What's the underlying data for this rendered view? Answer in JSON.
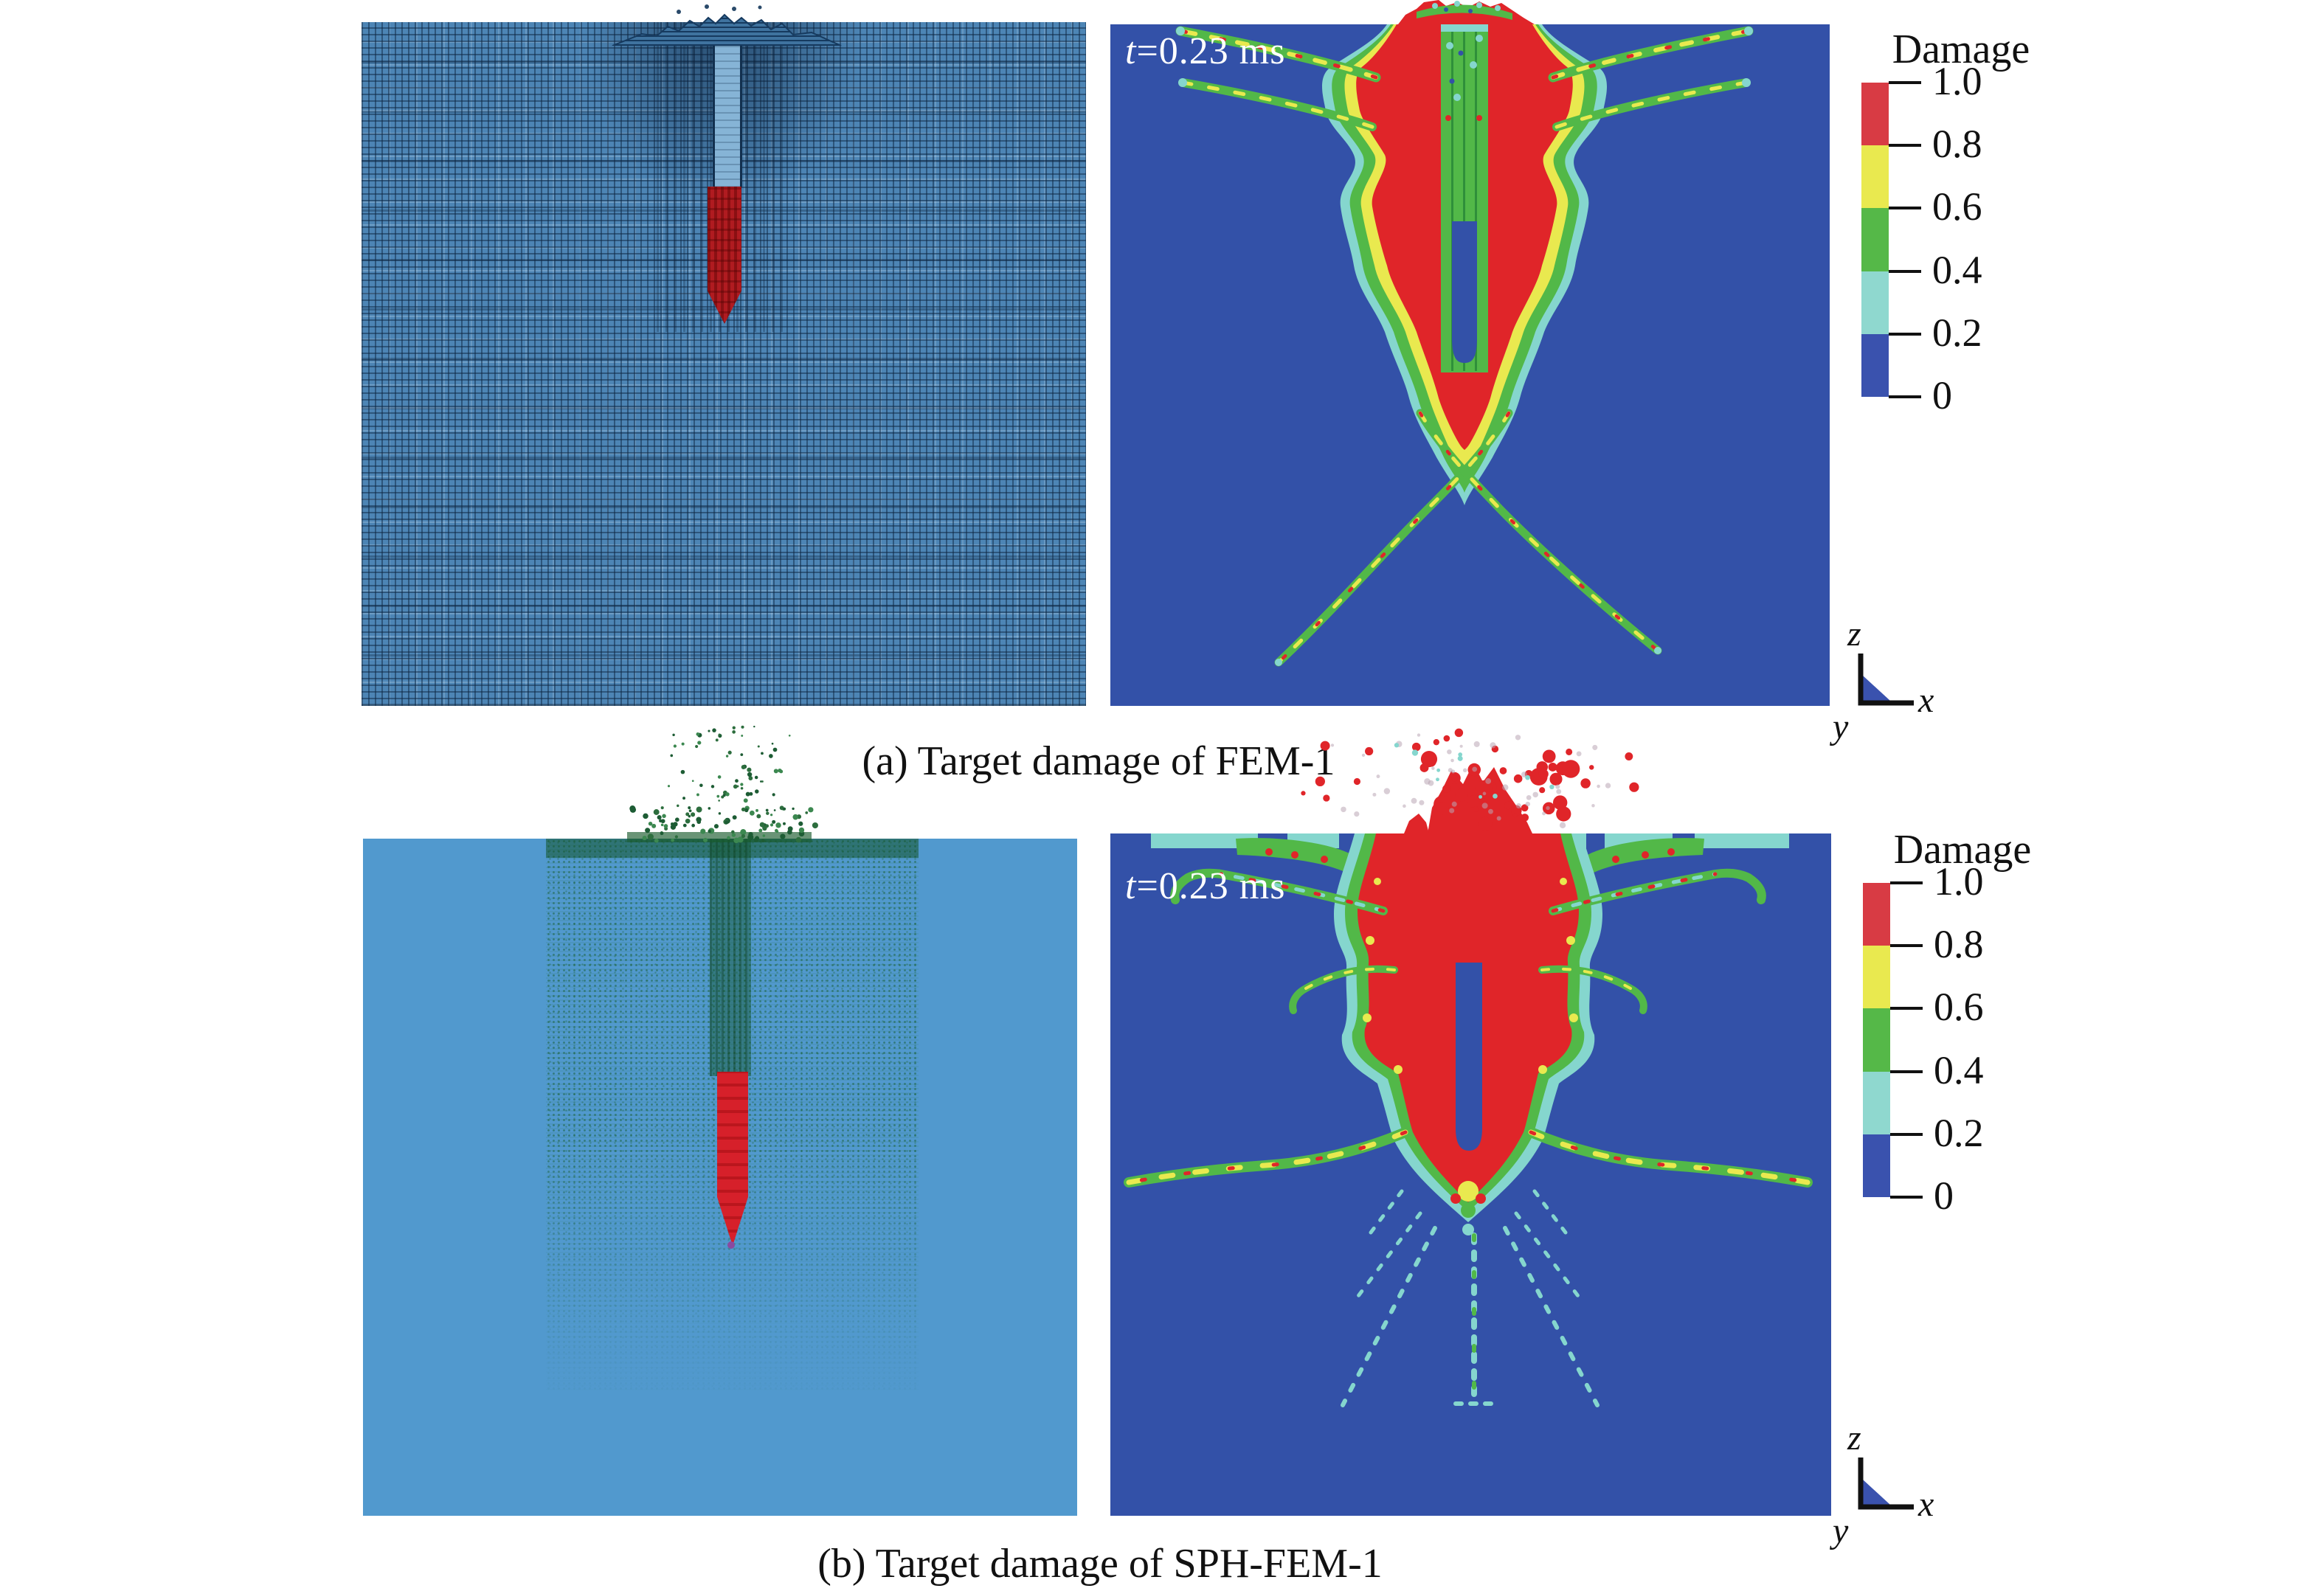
{
  "captions": {
    "a": "(a) Target damage of FEM-1",
    "b": "(b) Target damage of SPH-FEM-1"
  },
  "time_label": {
    "variable": "t",
    "value": "=0.23 ms"
  },
  "colorbar": {
    "title": "Damage",
    "tick_labels": [
      "1.0",
      "0.8",
      "0.6",
      "0.4",
      "0.2",
      "0"
    ],
    "segment_colors": [
      "#d83b44",
      "#e9e94f",
      "#55b848",
      "#8fd8cf",
      "#3a52ae"
    ]
  },
  "axis_triad": {
    "z": "z",
    "x": "x",
    "y": "y"
  },
  "colors": {
    "contour_background": "#3351a8",
    "damage_red": "#e02529",
    "damage_yellow": "#e9e94f",
    "damage_green": "#52b848",
    "damage_cyan": "#85d6ce",
    "fem_mesh_blue": "#4d85b5",
    "sph_particle_blue": "#5199ce",
    "sph_particle_green": "#2d6e3e",
    "projectile_red": "#c8161d"
  },
  "chart_data": {
    "type": "heatmap",
    "title": "Damage",
    "legend": {
      "title": "Damage",
      "position": "right",
      "tick_labels": [
        "1.0",
        "0.8",
        "0.6",
        "0.4",
        "0.2",
        "0"
      ],
      "bins": [
        {
          "range": [
            0.8,
            1.0
          ],
          "color": "#d83b44"
        },
        {
          "range": [
            0.6,
            0.8
          ],
          "color": "#e9e94f"
        },
        {
          "range": [
            0.4,
            0.6
          ],
          "color": "#55b848"
        },
        {
          "range": [
            0.2,
            0.4
          ],
          "color": "#8fd8cf"
        },
        {
          "range": [
            0.0,
            0.2
          ],
          "color": "#3a52ae"
        }
      ]
    },
    "panels": [
      {
        "id": "a",
        "caption": "(a) Target damage of FEM-1",
        "time": "t=0.23 ms",
        "left_view": "FEM mesh cross-section with embedded projectile and entry tunnel",
        "right_view": "Damage contour: central fully damaged (red) zone with lateral and diagonal crack bands"
      },
      {
        "id": "b",
        "caption": "(b) Target damage of SPH-FEM-1",
        "time": "t=0.23 ms",
        "left_view": "SPH particle cross-section with ejecta spray and embedded projectile",
        "right_view": "Damage contour: large red crater zone, surface spall band, radial crack rays and debris cloud"
      }
    ],
    "axes": {
      "triad": [
        "z",
        "x",
        "y"
      ]
    }
  }
}
